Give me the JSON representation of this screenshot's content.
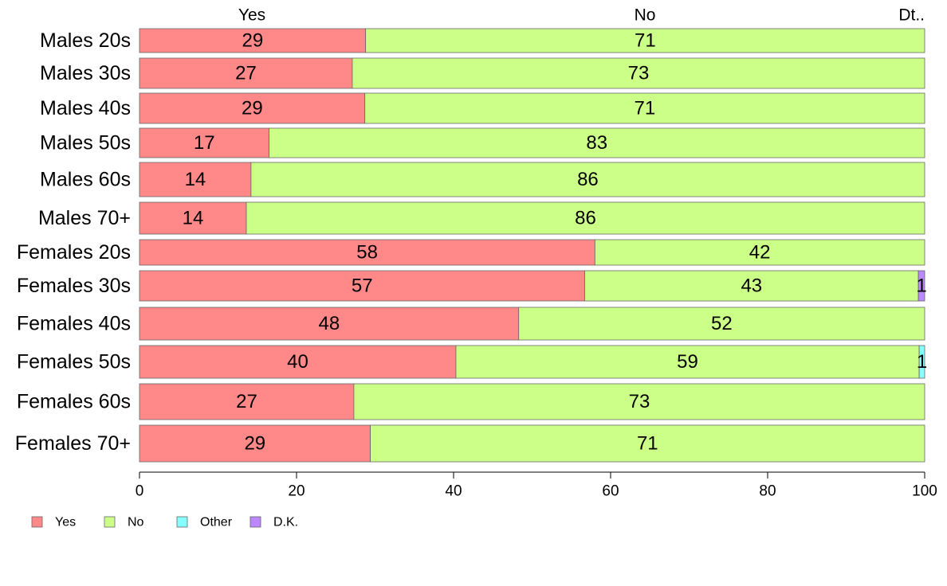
{
  "chart_data": {
    "type": "bar",
    "orientation": "horizontal",
    "stacked": true,
    "title": "",
    "xlabel": "",
    "ylabel": "",
    "xlim": [
      0,
      100
    ],
    "x_ticks": [
      0,
      20,
      40,
      60,
      80,
      100
    ],
    "column_headers": [
      "Yes",
      "No",
      "Dt.."
    ],
    "categories": [
      "Males 20s",
      "Males 30s",
      "Males 40s",
      "Males 50s",
      "Males 60s",
      "Males 70+",
      "Females 20s",
      "Females 30s",
      "Females 40s",
      "Females 50s",
      "Females 60s",
      "Females 70+"
    ],
    "series": [
      {
        "name": "Yes",
        "color": "#ff8888",
        "values": [
          28.8,
          27.1,
          28.7,
          16.5,
          14.2,
          13.6,
          58.0,
          56.7,
          48.3,
          40.3,
          27.3,
          29.4
        ],
        "labels": [
          "29",
          "27",
          "29",
          "17",
          "14",
          "14",
          "58",
          "57",
          "48",
          "40",
          "27",
          "29"
        ]
      },
      {
        "name": "No",
        "color": "#ccff88",
        "values": [
          71.2,
          72.9,
          71.3,
          83.5,
          85.8,
          86.4,
          42.0,
          42.5,
          51.7,
          59.0,
          72.7,
          70.6
        ],
        "labels": [
          "71",
          "73",
          "71",
          "83",
          "86",
          "86",
          "42",
          "43",
          "52",
          "59",
          "73",
          "71"
        ]
      },
      {
        "name": "Other",
        "color": "#88ffff",
        "values": [
          0,
          0,
          0,
          0,
          0,
          0,
          0,
          0,
          0,
          0.7,
          0,
          0
        ],
        "labels": [
          "",
          "",
          "",
          "",
          "",
          "",
          "",
          "",
          "",
          "1",
          "",
          ""
        ]
      },
      {
        "name": "D.K.",
        "color": "#bb88ff",
        "values": [
          0,
          0,
          0,
          0,
          0,
          0,
          0,
          0.8,
          0,
          0,
          0,
          0
        ],
        "labels": [
          "",
          "",
          "",
          "",
          "",
          "",
          "",
          "1",
          "",
          "",
          "",
          ""
        ]
      }
    ],
    "legend": {
      "position": "bottom-left",
      "entries": [
        "Yes",
        "No",
        "Other",
        "D.K."
      ]
    },
    "grid": false
  }
}
